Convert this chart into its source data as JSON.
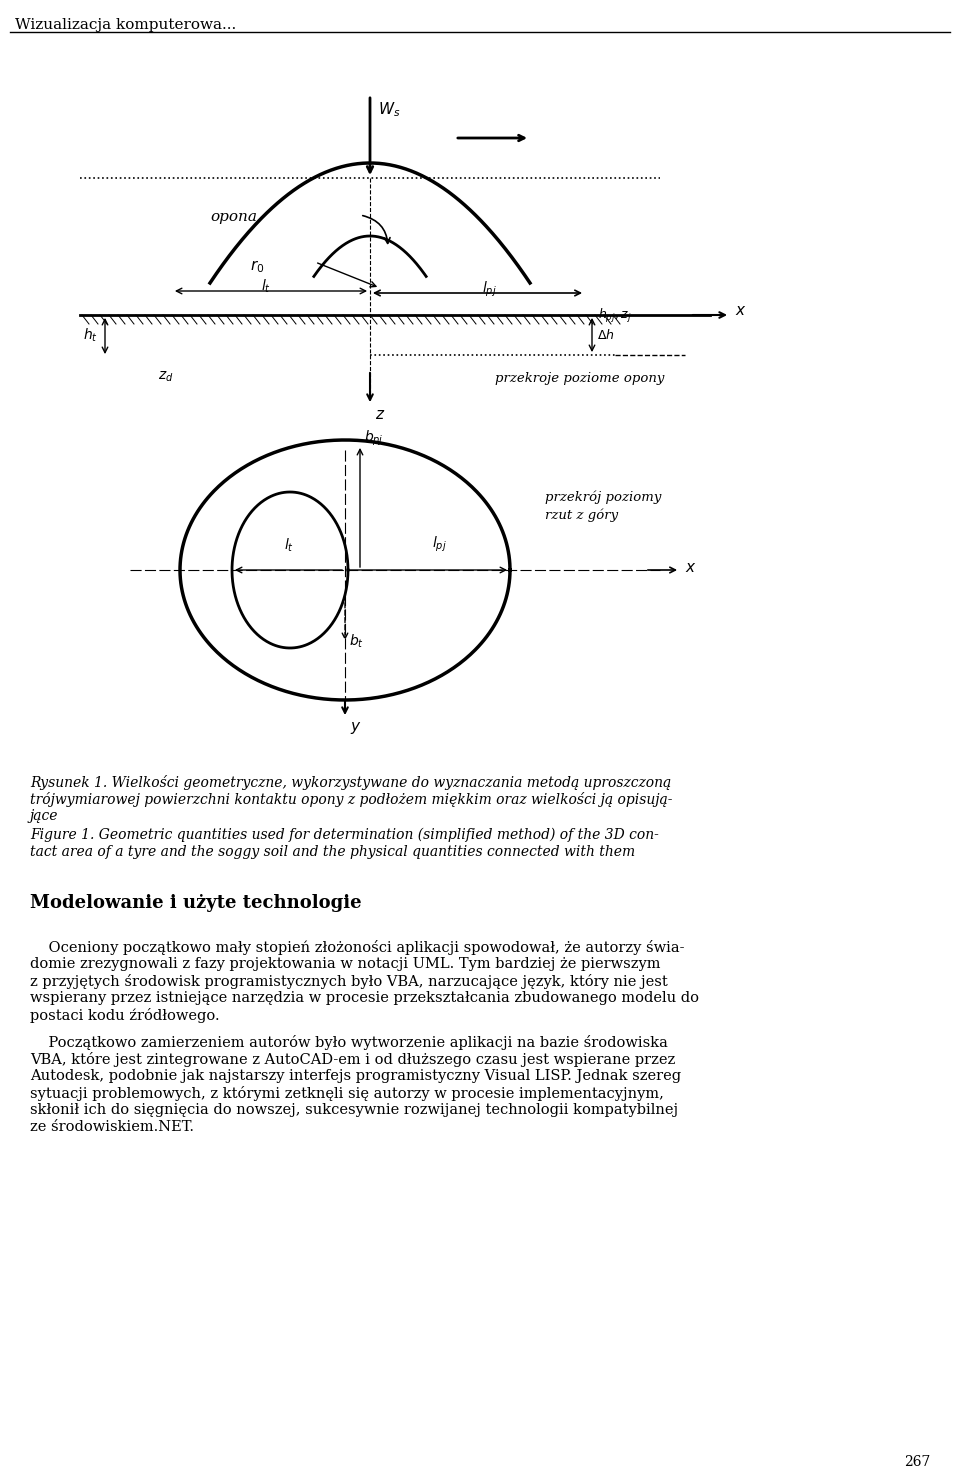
{
  "page_title": "Wizualizacja komputerowa...",
  "background_color": "#ffffff",
  "fig_width": 9.6,
  "fig_height": 14.75,
  "cap_lines_pol": [
    "Rysunek 1. Wielkości geometryczne, wykorzystywane do wyznaczania metodą uproszczoną",
    "trójwymiarowej powierzchni kontaktu opony z podłożem miękkim oraz wielkości ją opisują-",
    "jące"
  ],
  "cap_lines_eng": [
    "Figure 1. Geometric quantities used for determination (simplified method) of the 3D con-",
    "tact area of a tyre and the soggy soil and the physical quantities connected with them"
  ],
  "section_title": "Modelowanie i użyte technologie",
  "para1_lines": [
    "    Oceniony początkowo mały stopień złożoności aplikacji spowodował, że autorzy świa-",
    "domie zrezygnowali z fazy projektowania w notacji UML. Tym bardziej że pierwszym",
    "z przyjętych środowisk programistycznych było VBA, narzucające język, który nie jest",
    "wspierany przez istniejące narzędzia w procesie przekształcania zbudowanego modelu do",
    "postaci kodu źródłowego."
  ],
  "para2_lines": [
    "    Początkowo zamierzeniem autorów było wytworzenie aplikacji na bazie środowiska",
    "VBA, które jest zintegrowane z AutoCAD-em i od dłuższego czasu jest wspierane przez",
    "Autodesk, podobnie jak najstarszy interfejs programistyczny Visual LISP. Jednak szereg",
    "sytuacji problemowych, z którymi zetknęli się autorzy w procesie implementacyjnym,",
    "skłonił ich do sięgnięcia do nowszej, sukcesywnie rozwijanej technologii kompatybilnej",
    "ze środowiskiem.NET."
  ],
  "page_number": "267"
}
